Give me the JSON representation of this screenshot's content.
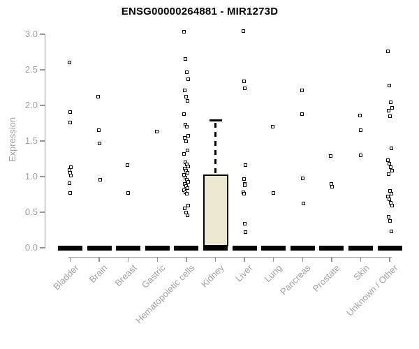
{
  "chart_data": {
    "type": "boxplot",
    "title": "ENSG00000264881 - MIR1273D",
    "ylabel": "Expression",
    "ylim": [
      0.0,
      3.0
    ],
    "ytick_labels": [
      "0.0",
      "0.5",
      "1.0",
      "1.5",
      "2.0",
      "2.5",
      "3.0"
    ],
    "ytick_values": [
      0.0,
      0.5,
      1.0,
      1.5,
      2.0,
      2.5,
      3.0
    ],
    "grid": false,
    "legend": "none",
    "marker_style": "open-square",
    "colors": {
      "title": "#000000",
      "axis": "#959595",
      "axis_text": "#a0a0a0",
      "marker": "#000000",
      "box_fill": "#ece8cf",
      "box_border": "#000000"
    },
    "categories": [
      "Bladder",
      "Brain",
      "Breast",
      "Gastric",
      "Hematopoietic cells",
      "Kidney",
      "Liver",
      "Lung",
      "Pancreas",
      "Prostate",
      "Skin",
      "Unknown / Other"
    ],
    "series": [
      {
        "category": "Bladder",
        "median": 0.0,
        "points": [
          2.6,
          1.91,
          1.76,
          1.13,
          1.09,
          1.05,
          1.01,
          0.91,
          0.77
        ]
      },
      {
        "category": "Brain",
        "median": 0.0,
        "points": [
          2.12,
          1.65,
          1.47,
          0.96
        ]
      },
      {
        "category": "Breast",
        "median": 0.0,
        "points": [
          1.16,
          0.77
        ]
      },
      {
        "category": "Gastric",
        "median": 0.0,
        "points": [
          1.63
        ]
      },
      {
        "category": "Hematopoietic cells",
        "median": 0.0,
        "points": [
          3.03,
          2.65,
          2.47,
          2.37,
          2.21,
          2.12,
          2.06,
          1.88,
          1.73,
          1.7,
          1.57,
          1.54,
          1.5,
          1.37,
          1.32,
          1.2,
          1.17,
          1.14,
          1.11,
          1.08,
          1.05,
          1.02,
          0.99,
          0.96,
          0.93,
          0.9,
          0.87,
          0.84,
          0.81,
          0.78,
          0.76,
          0.59,
          0.55,
          0.5,
          0.46
        ]
      },
      {
        "category": "Kidney",
        "median": 0.0,
        "q1": 0.02,
        "q3": 1.03,
        "whisker_high": 1.79,
        "points": []
      },
      {
        "category": "Liver",
        "median": 0.0,
        "points": [
          3.04,
          2.34,
          2.24,
          1.16,
          0.97,
          0.9,
          0.88,
          0.78,
          0.76,
          0.34,
          0.22
        ]
      },
      {
        "category": "Lung",
        "median": 0.0,
        "points": [
          1.7,
          0.77
        ]
      },
      {
        "category": "Pancreas",
        "median": 0.0,
        "points": [
          2.21,
          1.88,
          0.98,
          0.62
        ]
      },
      {
        "category": "Prostate",
        "median": 0.0,
        "points": [
          1.29,
          0.9,
          0.86
        ]
      },
      {
        "category": "Skin",
        "median": 0.0,
        "points": [
          1.86,
          1.65,
          1.3
        ]
      },
      {
        "category": "Unknown / Other",
        "median": 0.0,
        "points": [
          2.76,
          2.28,
          2.04,
          1.97,
          1.93,
          1.85,
          1.4,
          1.23,
          1.18,
          1.13,
          1.08,
          1.03,
          0.8,
          0.76,
          0.72,
          0.68,
          0.63,
          0.59,
          0.44,
          0.38,
          0.23
        ]
      }
    ]
  }
}
